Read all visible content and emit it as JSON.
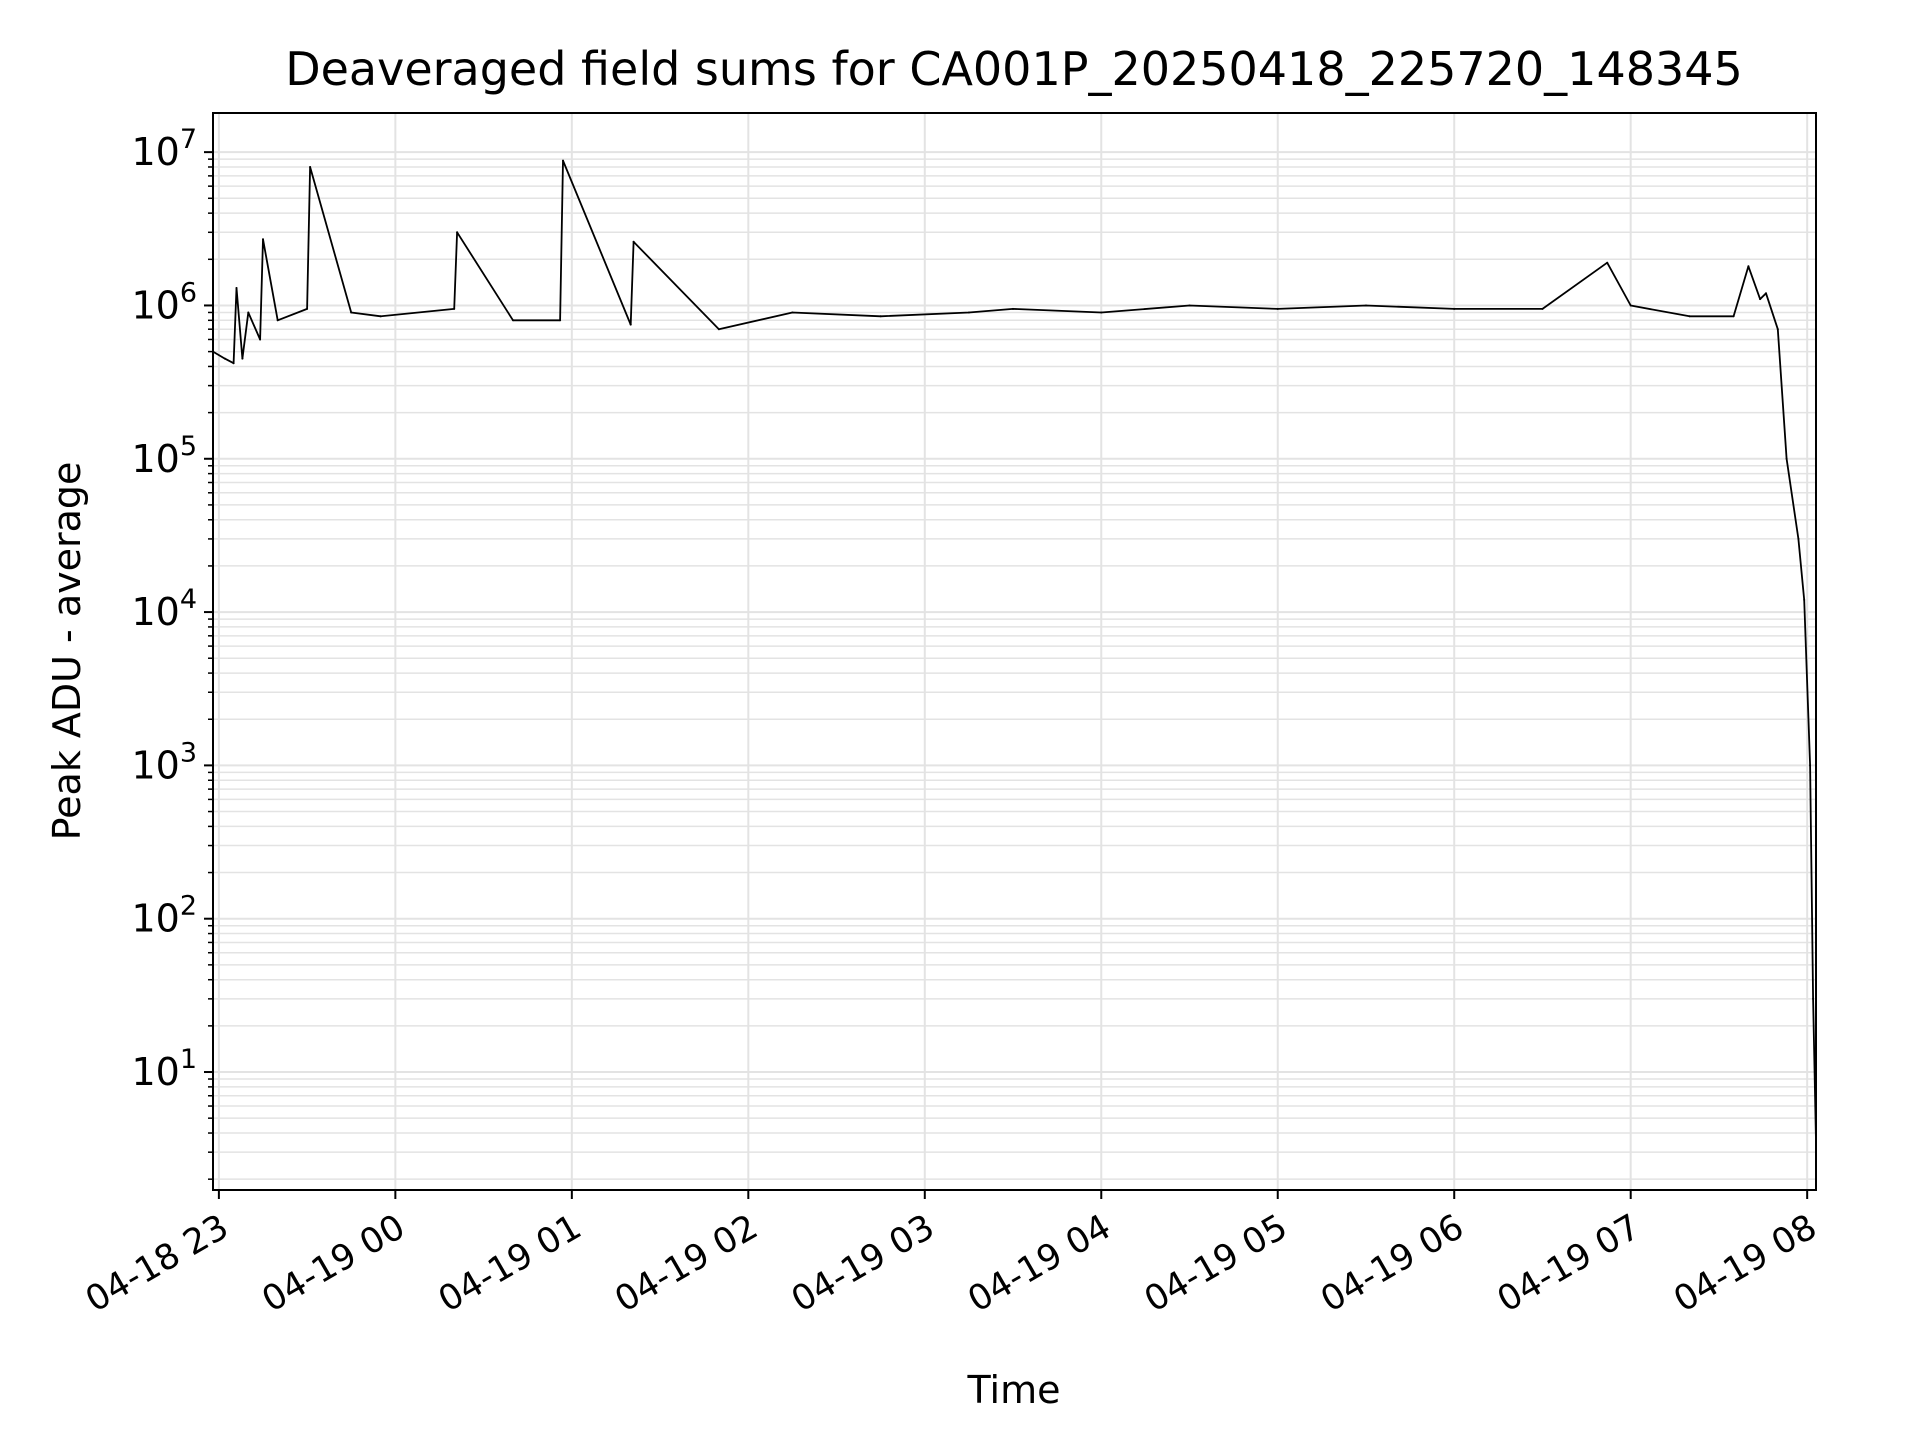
{
  "chart_data": {
    "type": "line",
    "title": "Deaveraged field sums for CA001P_20250418_225720_148345",
    "xlabel": "Time",
    "ylabel": "Peak ADU - average",
    "y_scale": "log",
    "ylim": [
      1.7,
      18000000
    ],
    "xlim": [
      "2025-04-18 22:58",
      "2025-04-19 08:03"
    ],
    "x_tick_labels": [
      "04-18 23",
      "04-19 00",
      "04-19 01",
      "04-19 02",
      "04-19 03",
      "04-19 04",
      "04-19 05",
      "04-19 06",
      "04-19 07",
      "04-19 08"
    ],
    "x_tick_times": [
      "2025-04-18 23:00",
      "2025-04-19 00:00",
      "2025-04-19 01:00",
      "2025-04-19 02:00",
      "2025-04-19 03:00",
      "2025-04-19 04:00",
      "2025-04-19 05:00",
      "2025-04-19 06:00",
      "2025-04-19 07:00",
      "2025-04-19 08:00"
    ],
    "y_ticks": [
      10,
      100,
      1000,
      10000,
      100000,
      1000000,
      10000000
    ],
    "y_tick_exponents": [
      "1",
      "2",
      "3",
      "4",
      "5",
      "6",
      "7"
    ],
    "grid": true,
    "line_color": "#000000",
    "grid_color": "#e3e3e3",
    "series": [
      {
        "x": [
          "2025-04-18 22:58",
          "2025-04-18 23:02",
          "2025-04-18 23:05",
          "2025-04-18 23:06",
          "2025-04-18 23:08",
          "2025-04-18 23:10",
          "2025-04-18 23:14",
          "2025-04-18 23:15",
          "2025-04-18 23:20",
          "2025-04-18 23:30",
          "2025-04-18 23:31",
          "2025-04-18 23:45",
          "2025-04-18 23:55",
          "2025-04-19 00:20",
          "2025-04-19 00:21",
          "2025-04-19 00:40",
          "2025-04-19 00:56",
          "2025-04-19 00:57",
          "2025-04-19 01:20",
          "2025-04-19 01:21",
          "2025-04-19 01:50",
          "2025-04-19 02:15",
          "2025-04-19 02:45",
          "2025-04-19 03:15",
          "2025-04-19 03:30",
          "2025-04-19 04:00",
          "2025-04-19 04:30",
          "2025-04-19 05:00",
          "2025-04-19 05:30",
          "2025-04-19 06:00",
          "2025-04-19 06:30",
          "2025-04-19 06:52",
          "2025-04-19 07:00",
          "2025-04-19 07:20",
          "2025-04-19 07:35",
          "2025-04-19 07:40",
          "2025-04-19 07:44",
          "2025-04-19 07:46",
          "2025-04-19 07:50",
          "2025-04-19 07:53",
          "2025-04-19 07:57",
          "2025-04-19 07:59",
          "2025-04-19 08:01",
          "2025-04-19 08:02",
          "2025-04-19 08:03"
        ],
        "y": [
          500000,
          450000,
          420000,
          1300000,
          450000,
          900000,
          600000,
          2700000,
          800000,
          950000,
          8000000,
          900000,
          850000,
          950000,
          3000000,
          800000,
          800000,
          8800000,
          750000,
          2600000,
          700000,
          900000,
          850000,
          900000,
          950000,
          900000,
          1000000,
          950000,
          1000000,
          950000,
          950000,
          1900000,
          1000000,
          850000,
          850000,
          1800000,
          1100000,
          1200000,
          700000,
          100000,
          30000,
          12000,
          1000,
          30,
          3.5
        ]
      }
    ]
  }
}
